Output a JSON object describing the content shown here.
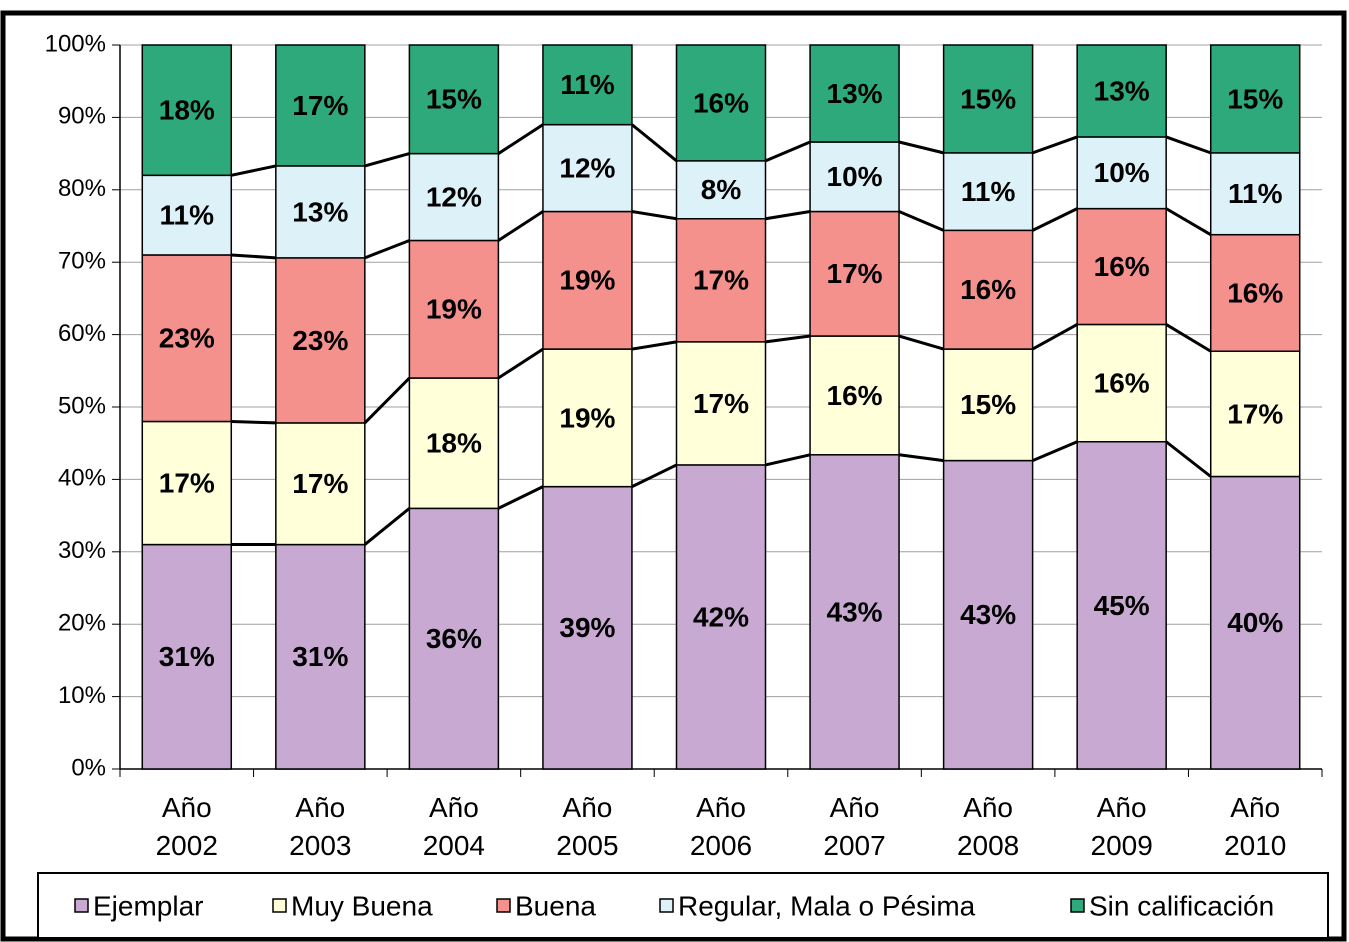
{
  "chart_data": {
    "type": "stacked_bar",
    "categories": [
      "Año 2002",
      "Año 2003",
      "Año 2004",
      "Año 2005",
      "Año 2006",
      "Año 2007",
      "Año 2008",
      "Año 2009",
      "Año 2010"
    ],
    "series": [
      {
        "name": "Ejemplar",
        "color": "#c8a9d2",
        "values": [
          31,
          31,
          36,
          39,
          42,
          43.4,
          42.6,
          45.2,
          40.4
        ],
        "value_labels": [
          "31%",
          "31%",
          "36%",
          "39%",
          "42%",
          "43%",
          "43%",
          "45%",
          "40%"
        ]
      },
      {
        "name": "Muy Buena",
        "color": "#ffffd9",
        "values": [
          17,
          16.8,
          18,
          19,
          17,
          16.4,
          15.4,
          16.2,
          17.3
        ],
        "value_labels": [
          "17%",
          "17%",
          "18%",
          "19%",
          "17%",
          "16%",
          "15%",
          "16%",
          "17%"
        ]
      },
      {
        "name": "Buena",
        "color": "#f4918d",
        "values": [
          23,
          22.8,
          19,
          19,
          17,
          17.2,
          16.4,
          16,
          16.1
        ],
        "value_labels": [
          "23%",
          "23%",
          "19%",
          "19%",
          "17%",
          "17%",
          "16%",
          "16%",
          "16%"
        ]
      },
      {
        "name": "Regular, Mala o Pésima",
        "color": "#ddf1f9",
        "values": [
          11,
          12.7,
          12,
          12,
          8,
          9.6,
          10.7,
          9.9,
          11.3
        ],
        "value_labels": [
          "11%",
          "13%",
          "12%",
          "12%",
          "8%",
          "10%",
          "11%",
          "10%",
          "11%"
        ]
      },
      {
        "name": "Sin calificación",
        "color": "#2ea97c",
        "values": [
          18,
          16.7,
          15,
          11,
          16,
          13.4,
          14.9,
          12.7,
          14.9
        ],
        "value_labels": [
          "18%",
          "17%",
          "15%",
          "11%",
          "16%",
          "13%",
          "15%",
          "13%",
          "15%"
        ]
      }
    ],
    "ylim": [
      0,
      100
    ],
    "yticks": [
      {
        "value": 0,
        "label": "0%"
      },
      {
        "value": 10,
        "label": "10%"
      },
      {
        "value": 20,
        "label": "20%"
      },
      {
        "value": 30,
        "label": "30%"
      },
      {
        "value": 40,
        "label": "40%"
      },
      {
        "value": 50,
        "label": "50%"
      },
      {
        "value": 60,
        "label": "60%"
      },
      {
        "value": 70,
        "label": "70%"
      },
      {
        "value": 80,
        "label": "80%"
      },
      {
        "value": 90,
        "label": "90%"
      },
      {
        "value": 100,
        "label": "100%"
      }
    ],
    "grid": true,
    "legend": "bottom"
  }
}
